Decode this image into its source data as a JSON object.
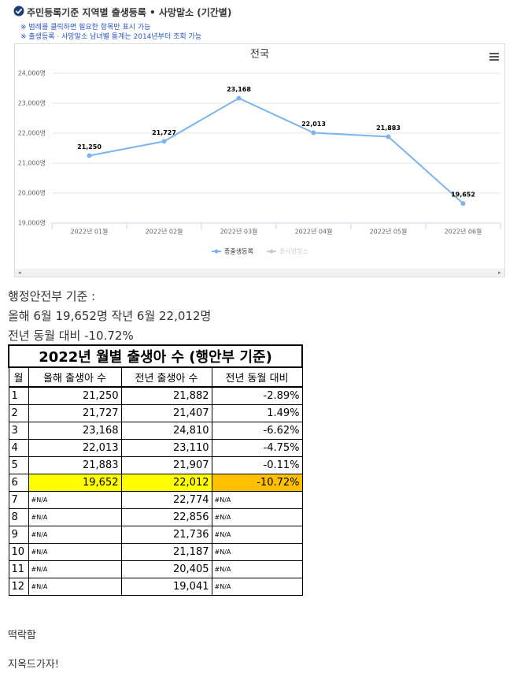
{
  "header": {
    "title": "주민등록기준 지역별 출생등록 • 사망말소 (기간별)",
    "notes": [
      "※ 범례를 클릭하면 필요한 항목만 표시 가능",
      "※ 출생등록 · 사망말소 남녀별 통계는 2014년부터 조회 가능"
    ]
  },
  "chart_data": {
    "type": "line",
    "title": "전국",
    "categories": [
      "2022년 01월",
      "2022년 02월",
      "2022년 03월",
      "2022년 04월",
      "2022년 05월",
      "2022년 06월"
    ],
    "series": [
      {
        "name": "총출생등록",
        "color": "#7cb5ec",
        "values": [
          21250,
          21727,
          23168,
          22013,
          21883,
          19652
        ],
        "value_labels": [
          "21,250",
          "21,727",
          "23,168",
          "22,013",
          "21,883",
          "19,652"
        ]
      },
      {
        "name": "총사망말소",
        "color": "#cccccc",
        "values": [
          null,
          null,
          null,
          null,
          null,
          null
        ]
      }
    ],
    "ylim": [
      19000,
      24000
    ],
    "yticks": [
      {
        "value": 19000,
        "label": "19,000명"
      },
      {
        "value": 20000,
        "label": "20,000명"
      },
      {
        "value": 21000,
        "label": "21,000명"
      },
      {
        "value": 22000,
        "label": "22,000명"
      },
      {
        "value": 23000,
        "label": "23,000명"
      },
      {
        "value": 24000,
        "label": "24,000명"
      }
    ],
    "grid": true
  },
  "text": [
    "행정안전부 기준 :",
    "올해 6월 19,652명 작년 6월 22,012명",
    "전년 동월 대비 -10.72%"
  ],
  "table": {
    "title": "2022년 월별 출생아 수 (행안부 기준)",
    "header": [
      "월",
      "올해 출생아 수",
      "전년 출생아 수",
      "전년 동월 대비"
    ],
    "rows": [
      [
        "1",
        "21,250",
        "21,882",
        "-2.89%"
      ],
      [
        "2",
        "21,727",
        "21,407",
        "1.49%"
      ],
      [
        "3",
        "23,168",
        "24,810",
        "-6.62%"
      ],
      [
        "4",
        "22,013",
        "23,110",
        "-4.75%"
      ],
      [
        "5",
        "21,883",
        "21,907",
        "-0.11%"
      ],
      [
        "6",
        "19,652",
        "22,012",
        "-10.72%"
      ],
      [
        "7",
        "#N/A",
        "22,774",
        "#N/A"
      ],
      [
        "8",
        "#N/A",
        "22,856",
        "#N/A"
      ],
      [
        "9",
        "#N/A",
        "21,736",
        "#N/A"
      ],
      [
        "10",
        "#N/A",
        "21,187",
        "#N/A"
      ],
      [
        "11",
        "#N/A",
        "20,405",
        "#N/A"
      ],
      [
        "12",
        "#N/A",
        "19,041",
        "#N/A"
      ]
    ]
  },
  "footer": [
    "떡락함",
    "지옥드가자!"
  ]
}
